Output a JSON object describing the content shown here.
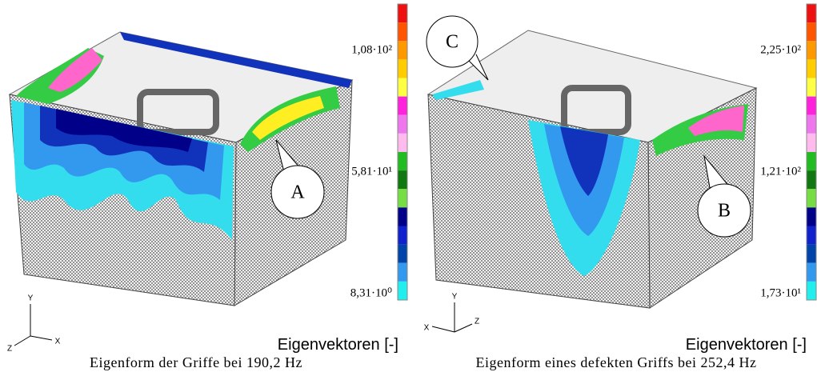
{
  "panels": [
    {
      "colorbar": {
        "labels": [
          "1,08·10²",
          "5,81·10¹",
          "8,31·10⁰"
        ]
      },
      "callouts": [
        "A"
      ],
      "axes": [
        "Y",
        "Z",
        "X"
      ],
      "legend_title": "Eigenvektoren [-]",
      "caption": "Eigenform der Griffe bei 190,2 Hz"
    },
    {
      "colorbar": {
        "labels": [
          "2,25·10²",
          "1,21·10²",
          "1,73·10¹"
        ]
      },
      "callouts": [
        "B",
        "C"
      ],
      "axes": [
        "Y",
        "X",
        "Z"
      ],
      "legend_title": "Eigenvektoren [-]",
      "caption": "Eigenform eines defekten Griffs bei 252,4 Hz"
    }
  ]
}
